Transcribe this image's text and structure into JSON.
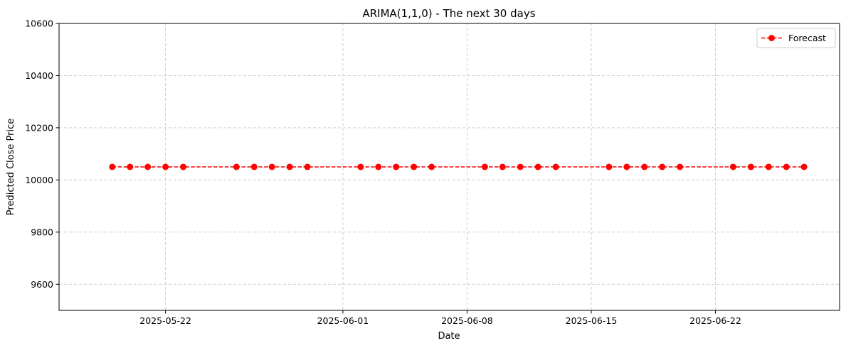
{
  "chart_data": {
    "type": "line",
    "title": "ARIMA(1,1,0) - The next 30 days",
    "xlabel": "Date",
    "ylabel": "Predicted Close Price",
    "x_scale": "date",
    "xlim": [
      "2025-05-16",
      "2025-06-29"
    ],
    "ylim": [
      9500,
      10600
    ],
    "x_ticks": [
      "2025-05-22",
      "2025-06-01",
      "2025-06-08",
      "2025-06-15",
      "2025-06-22"
    ],
    "y_ticks": [
      9600,
      9800,
      10000,
      10200,
      10400,
      10600
    ],
    "grid": true,
    "grid_style": "dashed",
    "legend_position": "top-right",
    "series": [
      {
        "name": "Forecast",
        "color": "#ff0000",
        "line_style": "dashed",
        "marker": "circle",
        "x": [
          "2025-05-19",
          "2025-05-20",
          "2025-05-21",
          "2025-05-22",
          "2025-05-23",
          "2025-05-26",
          "2025-05-27",
          "2025-05-28",
          "2025-05-29",
          "2025-05-30",
          "2025-06-02",
          "2025-06-03",
          "2025-06-04",
          "2025-06-05",
          "2025-06-06",
          "2025-06-09",
          "2025-06-10",
          "2025-06-11",
          "2025-06-12",
          "2025-06-13",
          "2025-06-16",
          "2025-06-17",
          "2025-06-18",
          "2025-06-19",
          "2025-06-20",
          "2025-06-23",
          "2025-06-24",
          "2025-06-25",
          "2025-06-26",
          "2025-06-27"
        ],
        "values": [
          10050,
          10050,
          10050,
          10050,
          10050,
          10050,
          10050,
          10050,
          10050,
          10050,
          10050,
          10050,
          10050,
          10050,
          10050,
          10050,
          10050,
          10050,
          10050,
          10050,
          10050,
          10050,
          10050,
          10050,
          10050,
          10050,
          10050,
          10050,
          10050,
          10050
        ]
      }
    ]
  }
}
